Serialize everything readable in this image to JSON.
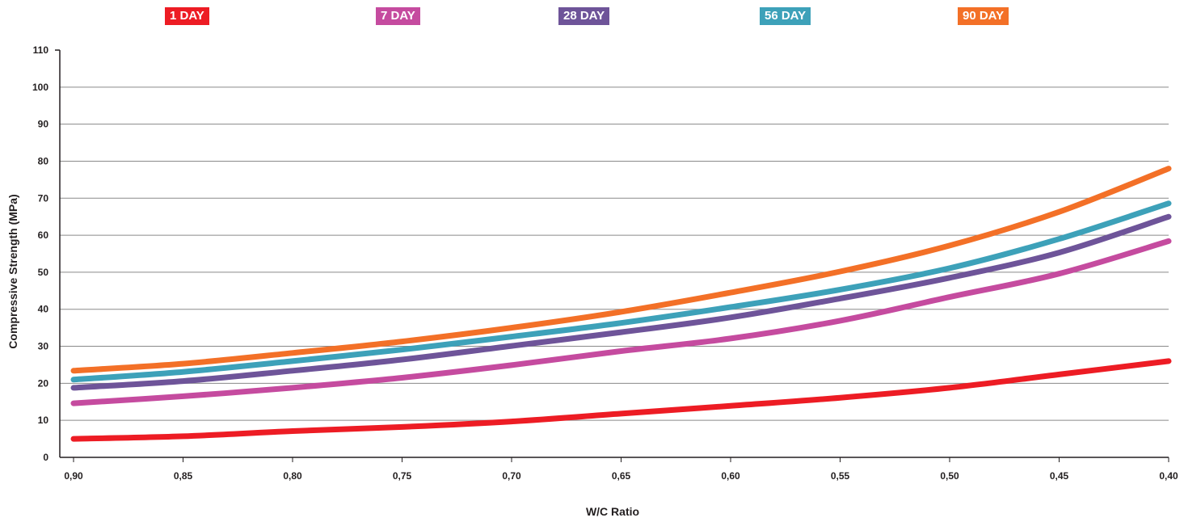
{
  "chart_data": {
    "type": "line",
    "xlabel": "W/C Ratio",
    "ylabel": "Compressive Strength (MPa)",
    "categories": [
      "0,90",
      "0,85",
      "0,80",
      "0,75",
      "0,70",
      "0,65",
      "0,60",
      "0,55",
      "0,50",
      "0,45",
      "0,40"
    ],
    "ylim": [
      0,
      110
    ],
    "yticks": [
      "0",
      "10",
      "20",
      "30",
      "40",
      "50",
      "60",
      "70",
      "80",
      "90",
      "100",
      "110"
    ],
    "grid": true,
    "legend_position": "top",
    "series": [
      {
        "name": "1 DAY",
        "color": "#ed1c24",
        "values": [
          5.0,
          5.7,
          7.1,
          8.2,
          9.7,
          11.8,
          13.9,
          16.1,
          18.8,
          22.4,
          26.0
        ]
      },
      {
        "name": "7 DAY",
        "color": "#c54b9f",
        "values": [
          14.6,
          16.5,
          18.8,
          21.5,
          24.9,
          28.7,
          32.1,
          36.9,
          43.3,
          49.6,
          58.4
        ]
      },
      {
        "name": "28 DAY",
        "color": "#6e5499",
        "values": [
          18.8,
          20.6,
          23.4,
          26.4,
          30.1,
          33.8,
          37.8,
          42.9,
          48.5,
          55.3,
          65.0
        ]
      },
      {
        "name": "56 DAY",
        "color": "#3da1b9",
        "values": [
          21.0,
          23.1,
          26.0,
          29.1,
          32.6,
          36.3,
          40.6,
          45.3,
          51.1,
          59.0,
          68.6
        ]
      },
      {
        "name": "90 DAY",
        "color": "#f37027",
        "values": [
          23.4,
          25.3,
          28.2,
          31.3,
          35.0,
          39.3,
          44.5,
          50.2,
          57.2,
          66.3,
          78.0
        ]
      }
    ]
  }
}
